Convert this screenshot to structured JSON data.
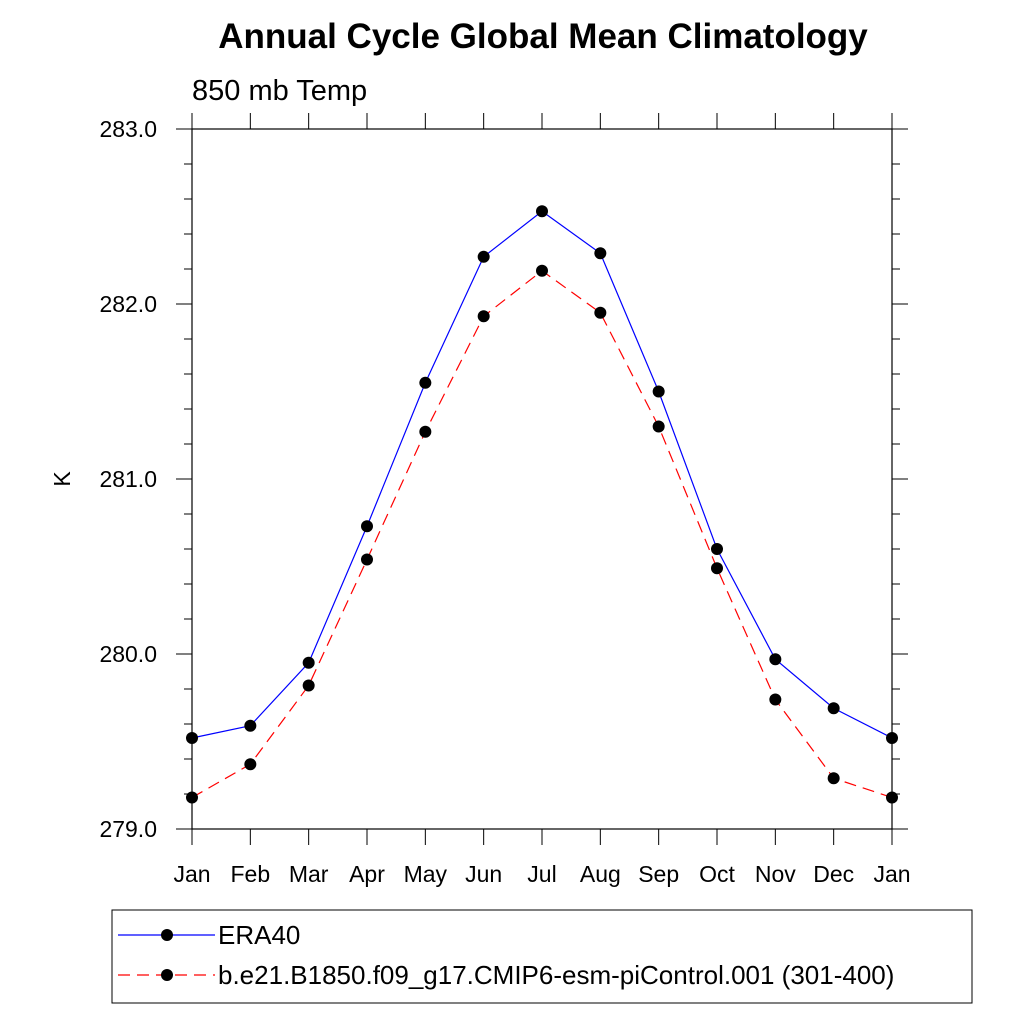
{
  "chart_data": {
    "type": "line",
    "title": "Annual Cycle Global Mean Climatology",
    "subtitle": "850 mb Temp",
    "xlabel": "",
    "ylabel": "K",
    "categories": [
      "Jan",
      "Feb",
      "Mar",
      "Apr",
      "May",
      "Jun",
      "Jul",
      "Aug",
      "Sep",
      "Oct",
      "Nov",
      "Dec",
      "Jan"
    ],
    "y_tick_labels": [
      "279.0",
      "280.0",
      "281.0",
      "282.0",
      "283.0"
    ],
    "ylim": [
      279.0,
      283.0
    ],
    "y_major_step": 1.0,
    "y_minor_step": 0.2,
    "grid": false,
    "legend_position": "bottom",
    "series": [
      {
        "name": "ERA40",
        "color": "#0000ff",
        "line_style": "solid",
        "marker": "filled-circle",
        "values": [
          279.52,
          279.59,
          279.95,
          280.73,
          281.55,
          282.27,
          282.53,
          282.29,
          281.5,
          280.6,
          279.97,
          279.69,
          279.52
        ]
      },
      {
        "name": "b.e21.B1850.f09_g17.CMIP6-esm-piControl.001 (301-400)",
        "color": "#ff0000",
        "line_style": "dashed",
        "marker": "filled-circle",
        "values": [
          279.18,
          279.37,
          279.82,
          280.54,
          281.27,
          281.93,
          282.19,
          281.95,
          281.3,
          280.49,
          279.74,
          279.29,
          279.18
        ]
      }
    ]
  }
}
